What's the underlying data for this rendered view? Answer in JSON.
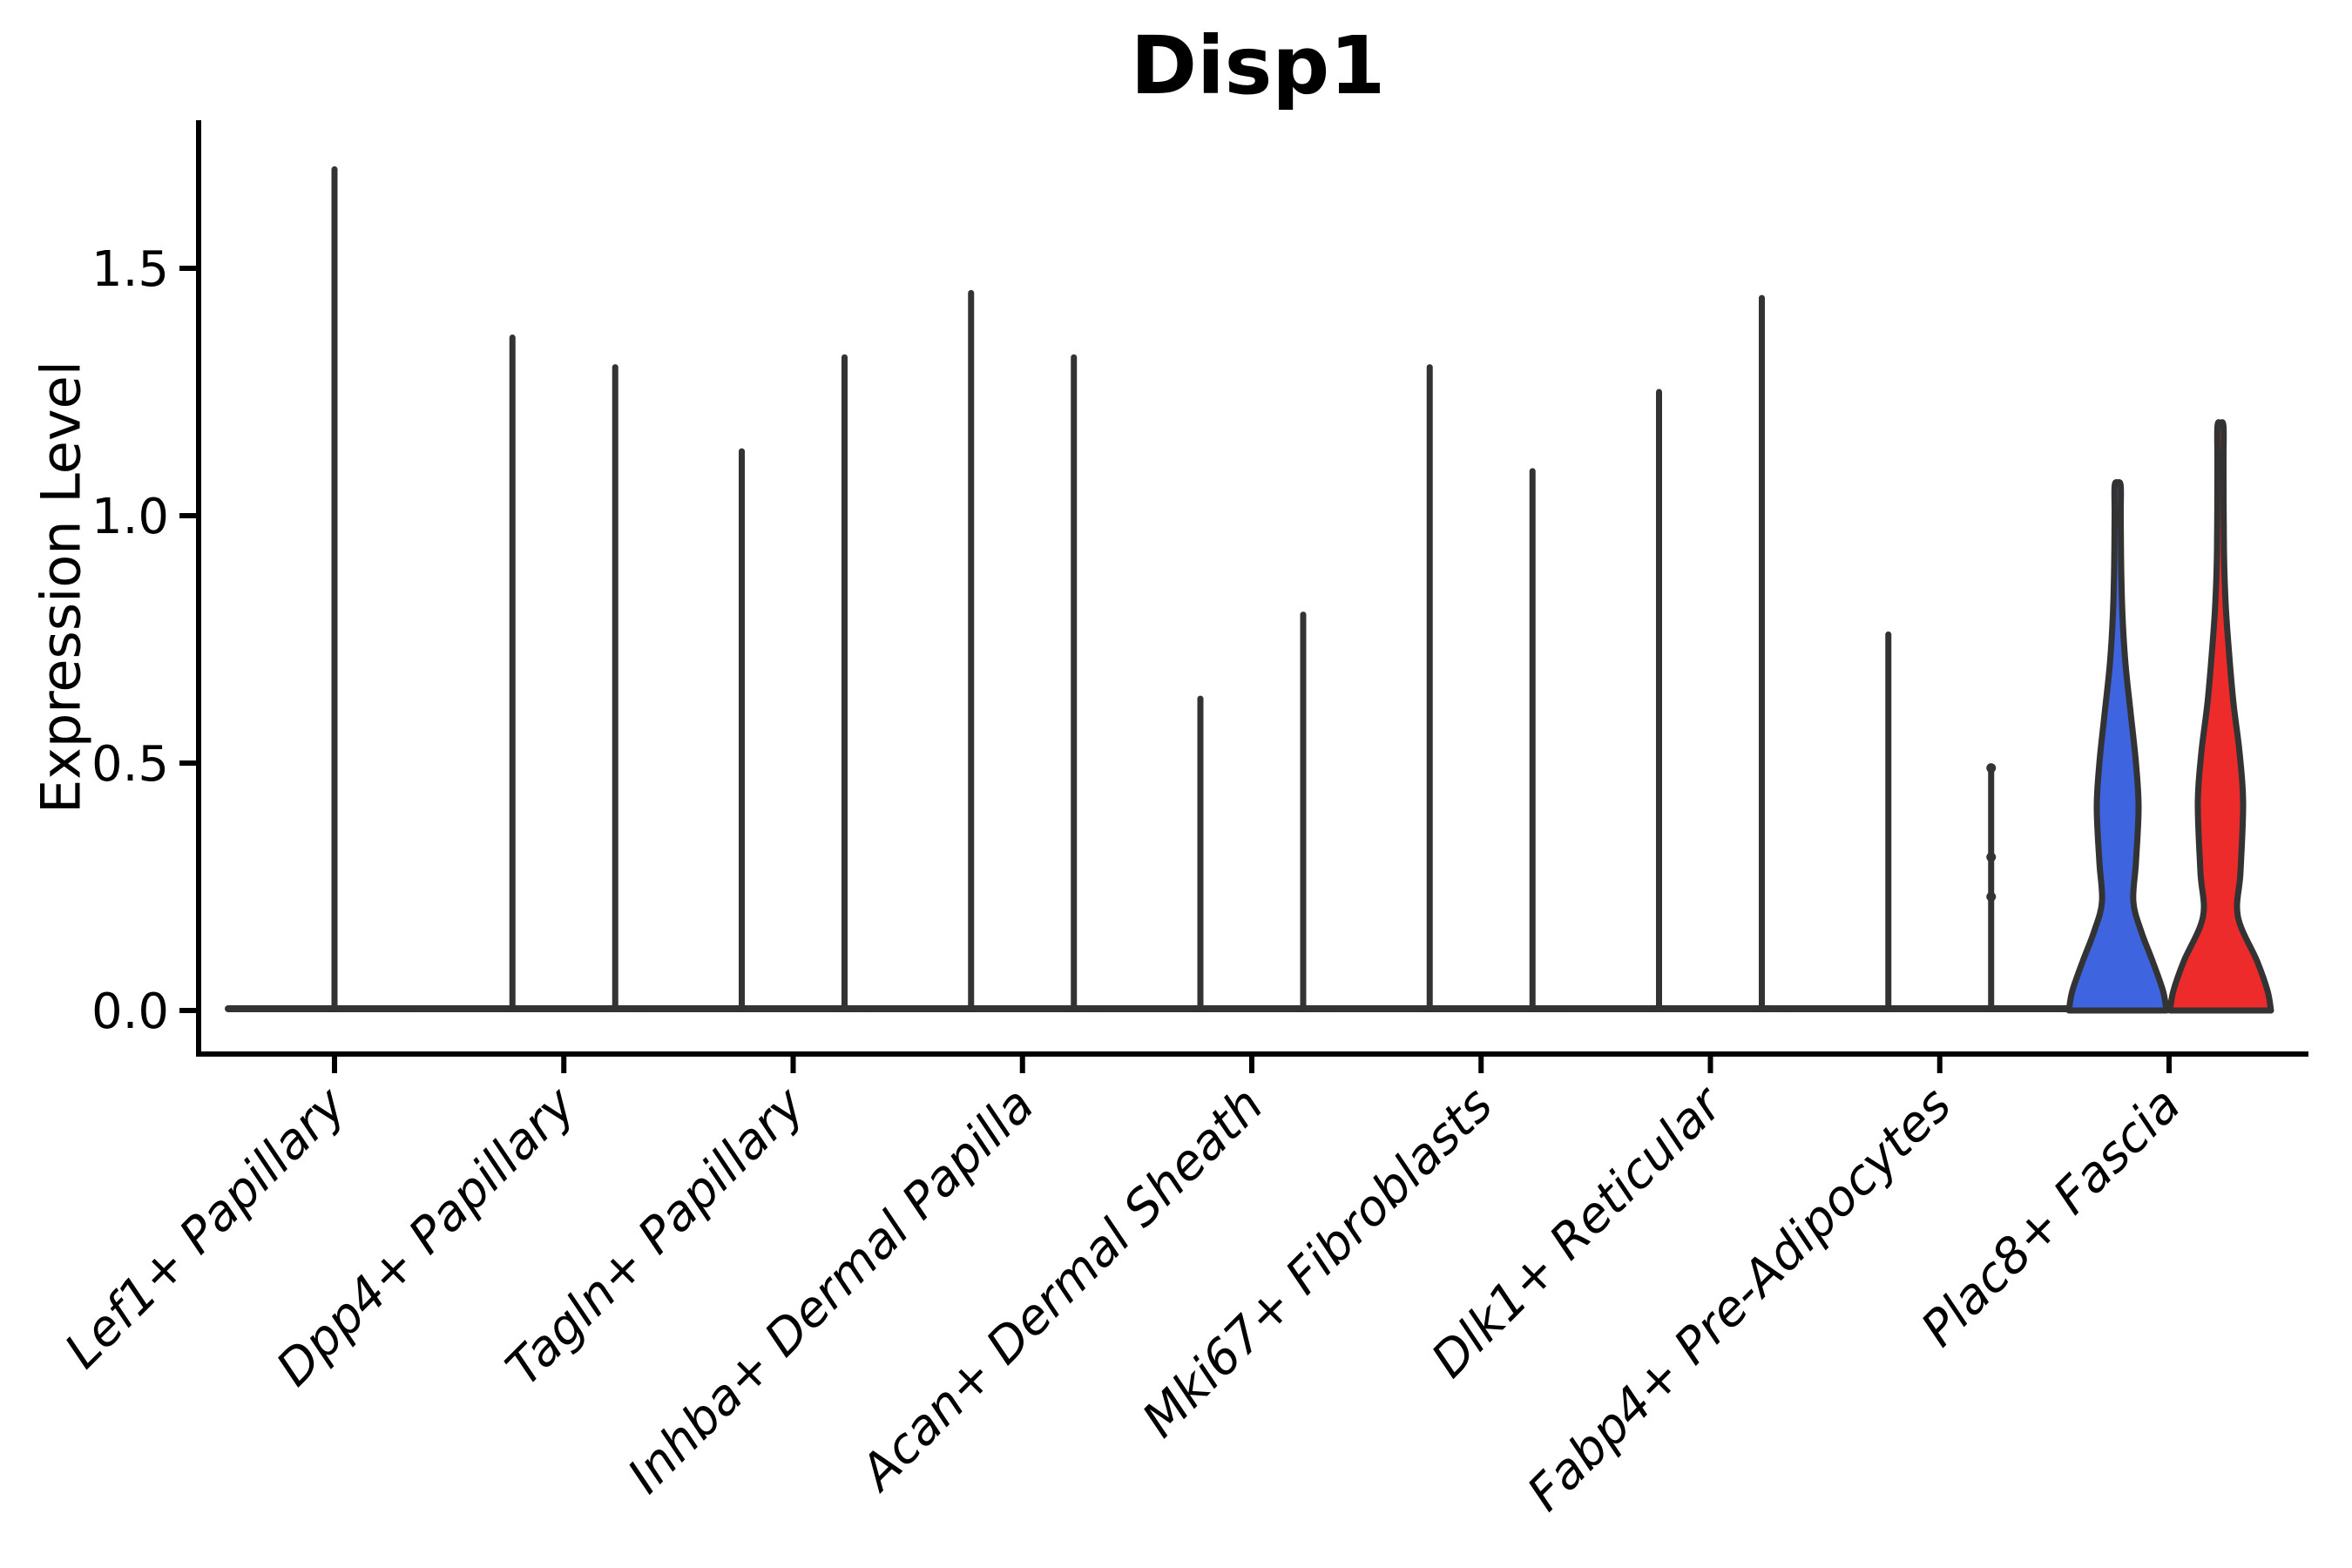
{
  "title": "Disp1",
  "ylabel": "Expression Level",
  "colors": {
    "blue": "#3E64E0",
    "red": "#EE2B2B",
    "violin_line": "#333333",
    "axis": "#000000"
  },
  "chart_data": {
    "type": "violin",
    "title": "Disp1",
    "ylabel": "Expression Level",
    "xlabel": "",
    "ylim": [
      -0.09,
      1.8
    ],
    "yticks": [
      0.0,
      0.5,
      1.0,
      1.5
    ],
    "ytick_labels": [
      "0.0",
      "0.5",
      "1.0",
      "1.5"
    ],
    "xtick_rotation": 45,
    "grid": false,
    "legend_position": "none",
    "categories": [
      "Lef1+ Papillary",
      "Dpp4+ Papillary",
      "Tagln+ Papillary",
      "Inhba+ Dermal Papilla",
      "Acan+ Dermal Sheath",
      "Mki67+ Fibroblasts",
      "Dlk1+ Reticular",
      "Fabp4+ Pre-Adipocytes",
      "Plac8+ Fascia"
    ],
    "groups": [
      {
        "category": "Lef1+ Papillary",
        "violins": [
          {
            "slot": "center",
            "style": "spike",
            "color": "#333333",
            "max_expression": 1.7
          }
        ]
      },
      {
        "category": "Dpp4+ Papillary",
        "violins": [
          {
            "slot": "left",
            "style": "spike",
            "color": "#333333",
            "max_expression": 1.36
          },
          {
            "slot": "right",
            "style": "spike",
            "color": "#333333",
            "max_expression": 1.3
          }
        ]
      },
      {
        "category": "Tagln+ Papillary",
        "violins": [
          {
            "slot": "left",
            "style": "spike",
            "color": "#333333",
            "max_expression": 1.13
          },
          {
            "slot": "right",
            "style": "spike",
            "color": "#333333",
            "max_expression": 1.32
          }
        ]
      },
      {
        "category": "Inhba+ Dermal Papilla",
        "violins": [
          {
            "slot": "left",
            "style": "spike",
            "color": "#333333",
            "max_expression": 1.45
          },
          {
            "slot": "right",
            "style": "spike",
            "color": "#333333",
            "max_expression": 1.32
          }
        ]
      },
      {
        "category": "Acan+ Dermal Sheath",
        "violins": [
          {
            "slot": "left",
            "style": "spike",
            "color": "#333333",
            "max_expression": 0.63
          },
          {
            "slot": "right",
            "style": "spike",
            "color": "#333333",
            "max_expression": 0.8
          }
        ]
      },
      {
        "category": "Mki67+ Fibroblasts",
        "violins": [
          {
            "slot": "left",
            "style": "spike",
            "color": "#333333",
            "max_expression": 1.3
          },
          {
            "slot": "right",
            "style": "spike",
            "color": "#333333",
            "max_expression": 1.09
          }
        ]
      },
      {
        "category": "Dlk1+ Reticular",
        "violins": [
          {
            "slot": "left",
            "style": "spike",
            "color": "#333333",
            "max_expression": 1.25
          },
          {
            "slot": "right",
            "style": "spike",
            "color": "#333333",
            "max_expression": 1.44
          }
        ]
      },
      {
        "category": "Fabp4+ Pre-Adipocytes",
        "violins": [
          {
            "slot": "left",
            "style": "spike",
            "color": "#333333",
            "max_expression": 0.76
          },
          {
            "slot": "right",
            "style": "spike",
            "color": "#333333",
            "max_expression": 0.49,
            "dots": [
              0.49,
              0.31,
              0.23
            ]
          }
        ]
      },
      {
        "category": "Plac8+ Fascia",
        "violins": [
          {
            "slot": "left",
            "style": "violin",
            "color": "#3E64E0",
            "max_expression": 1.06,
            "profile": [
              [
                0,
                56
              ],
              [
                0.04,
                52
              ],
              [
                0.1,
                40
              ],
              [
                0.16,
                27
              ],
              [
                0.22,
                18
              ],
              [
                0.3,
                21
              ],
              [
                0.41,
                24
              ],
              [
                0.5,
                21
              ],
              [
                0.6,
                15
              ],
              [
                0.7,
                9
              ],
              [
                0.8,
                5.5
              ],
              [
                0.9,
                4
              ],
              [
                1.0,
                3.5
              ],
              [
                1.06,
                3.5
              ]
            ]
          },
          {
            "slot": "right",
            "style": "violin",
            "color": "#EE2B2B",
            "max_expression": 1.18,
            "profile": [
              [
                0,
                58
              ],
              [
                0.04,
                54
              ],
              [
                0.1,
                42
              ],
              [
                0.19,
                20
              ],
              [
                0.28,
                23
              ],
              [
                0.42,
                26
              ],
              [
                0.52,
                22
              ],
              [
                0.62,
                15
              ],
              [
                0.72,
                10
              ],
              [
                0.82,
                6
              ],
              [
                0.93,
                4
              ],
              [
                1.1,
                3.5
              ],
              [
                1.18,
                3.5
              ]
            ]
          }
        ]
      }
    ]
  }
}
